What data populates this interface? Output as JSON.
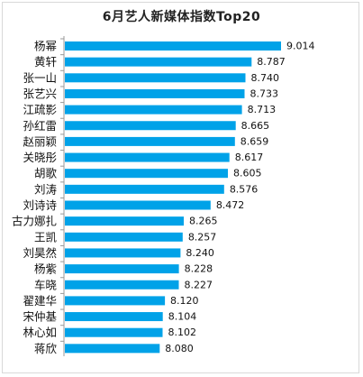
{
  "chart_data": {
    "type": "bar",
    "orientation": "horizontal",
    "title": "6月艺人新媒体指数Top20",
    "categories": [
      "杨幂",
      "黄轩",
      "张一山",
      "张艺兴",
      "江疏影",
      "孙红雷",
      "赵丽颖",
      "关晓彤",
      "胡歌",
      "刘涛",
      "刘诗诗",
      "古力娜扎",
      "王凯",
      "刘昊然",
      "杨紫",
      "车晓",
      "翟建华",
      "宋仲基",
      "林心如",
      "蒋欣"
    ],
    "values": [
      9.014,
      8.787,
      8.74,
      8.733,
      8.713,
      8.665,
      8.659,
      8.617,
      8.605,
      8.576,
      8.472,
      8.265,
      8.257,
      8.24,
      8.228,
      8.227,
      8.12,
      8.104,
      8.102,
      8.08
    ],
    "value_labels": [
      "9.014",
      "8.787",
      "8.740",
      "8.733",
      "8.713",
      "8.665",
      "8.659",
      "8.617",
      "8.605",
      "8.576",
      "8.472",
      "8.265",
      "8.257",
      "8.240",
      "8.228",
      "8.227",
      "8.120",
      "8.104",
      "8.102",
      "8.080"
    ],
    "xlim": [
      7.35,
      9.014
    ],
    "bar_color": "#00a2e8",
    "grid": false,
    "legend": "none"
  }
}
